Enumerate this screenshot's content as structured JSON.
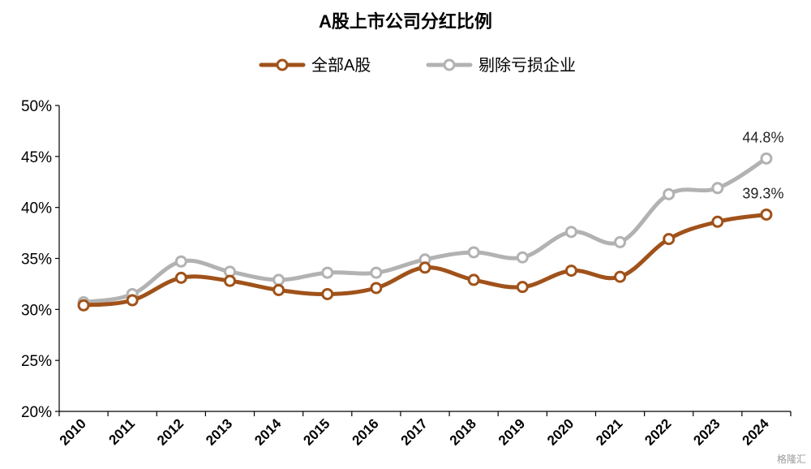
{
  "chart_data": {
    "type": "line",
    "title": "A股上市公司分红比例",
    "categories": [
      "2010",
      "2011",
      "2012",
      "2013",
      "2014",
      "2015",
      "2016",
      "2017",
      "2018",
      "2019",
      "2020",
      "2021",
      "2022",
      "2023",
      "2024"
    ],
    "ylim": [
      20,
      50
    ],
    "yticks": [
      "20%",
      "25%",
      "30%",
      "35%",
      "40%",
      "45%",
      "50%"
    ],
    "grid": false,
    "legend_placement": "top-center",
    "series": [
      {
        "name": "全部A股",
        "color": "#A0521A",
        "values": [
          30.4,
          30.9,
          33.1,
          32.8,
          31.9,
          31.5,
          32.1,
          34.1,
          32.9,
          32.2,
          33.8,
          33.2,
          36.9,
          38.6,
          39.3
        ],
        "end_label": "39.3%"
      },
      {
        "name": "剔除亏损企业",
        "color": "#B2B2B2",
        "values": [
          30.7,
          31.5,
          34.7,
          33.7,
          32.9,
          33.6,
          33.6,
          34.9,
          35.6,
          35.1,
          37.6,
          36.6,
          41.3,
          41.9,
          44.8
        ],
        "end_label": "44.8%"
      }
    ]
  },
  "watermark": "格隆汇"
}
